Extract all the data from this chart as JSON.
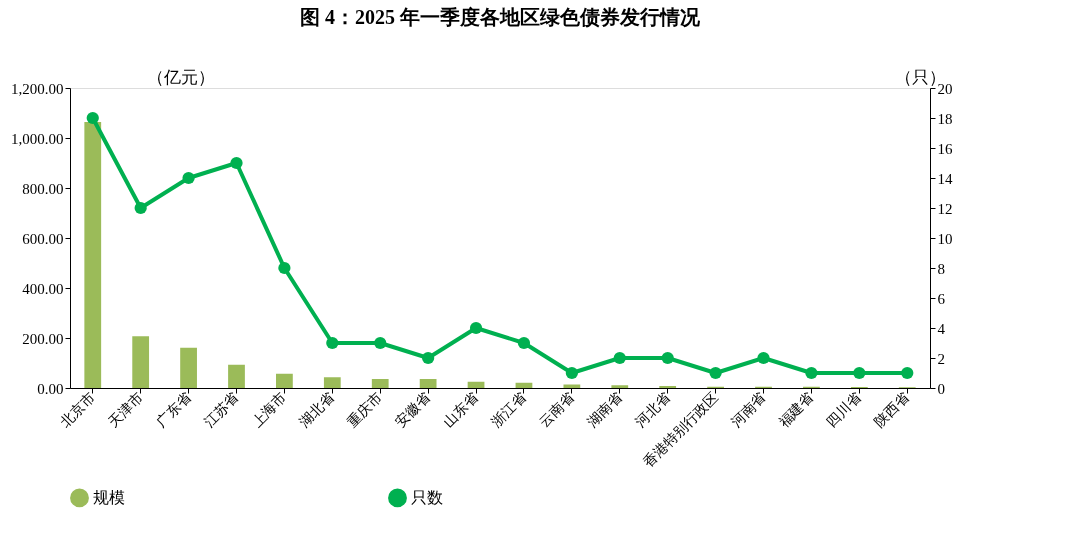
{
  "chart_data": {
    "type": "bar",
    "title": "图 4：2025 年一季度各地区绿色债券发行情况",
    "ylabel": "（亿元）",
    "y2label": "（只）",
    "categories": [
      "北京市",
      "天津市",
      "广东省",
      "江苏省",
      "上海市",
      "湖北省",
      "重庆市",
      "安徽省",
      "山东省",
      "浙江省",
      "云南省",
      "湖南省",
      "河北省",
      "香港特别行政区",
      "河南省",
      "福建省",
      "四川省",
      "陕西省"
    ],
    "series": [
      {
        "name": "规模",
        "color": "#9bbb59",
        "values": [
          1064,
          207,
          161,
          93,
          57,
          43,
          36,
          36,
          25,
          21,
          14,
          11,
          8,
          5,
          5,
          5,
          4,
          3
        ]
      },
      {
        "name": "只数",
        "type": "line",
        "axis": "y2",
        "color": "#00b050",
        "marker": "circle",
        "values": [
          18,
          12,
          14,
          15,
          8,
          3,
          3,
          2,
          4,
          3,
          1,
          2,
          2,
          1,
          2,
          1,
          1,
          1
        ]
      }
    ],
    "ylim": [
      0,
      1200
    ],
    "yticks": [
      {
        "value": 0,
        "label": "0.00"
      },
      {
        "value": 200,
        "label": "200.00"
      },
      {
        "value": 400,
        "label": "400.00"
      },
      {
        "value": 600,
        "label": "600.00"
      },
      {
        "value": 800,
        "label": "800.00"
      },
      {
        "value": 1000,
        "label": "1,000.00"
      },
      {
        "value": 1200,
        "label": "1,200.00"
      }
    ],
    "y2lim": [
      0,
      20
    ],
    "y2ticks": [
      0,
      2,
      4,
      6,
      8,
      10,
      12,
      14,
      16,
      18,
      20
    ],
    "legend": "bottom",
    "grid": false
  }
}
